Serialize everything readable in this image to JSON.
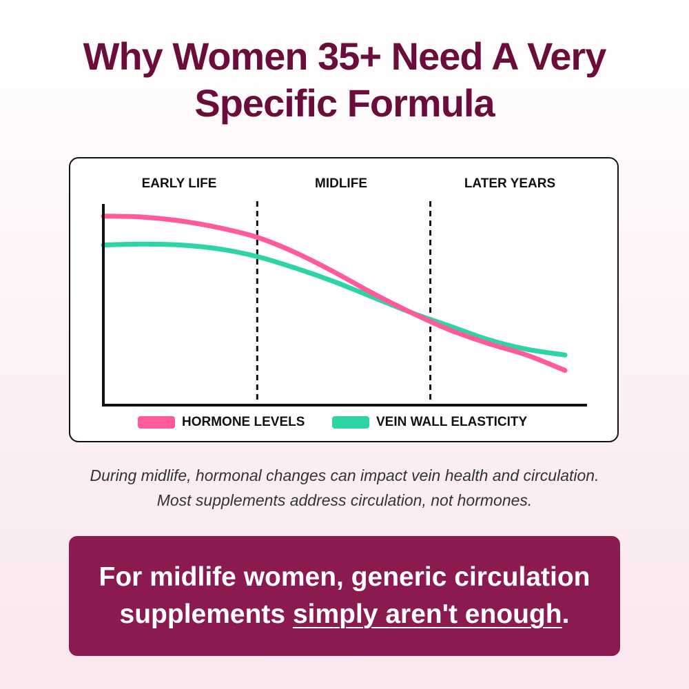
{
  "title_line1": "Why Women 35+ Need A Very",
  "title_line2": "Specific Formula",
  "chart_data": {
    "type": "line",
    "title": "",
    "xlabel": "",
    "ylabel": "",
    "x": [
      0,
      1,
      2,
      3,
      4,
      5,
      6,
      7,
      8,
      9,
      10,
      11,
      12
    ],
    "xlim": [
      0,
      12
    ],
    "ylim": [
      0,
      10
    ],
    "phases": [
      "EARLY LIFE",
      "MIDLIFE",
      "LATER YEARS"
    ],
    "phase_boundaries": [
      4,
      8.5
    ],
    "series": [
      {
        "name": "HORMONE LEVELS",
        "color": "#ff5a9a",
        "values": [
          9.8,
          9.75,
          9.55,
          9.2,
          8.7,
          7.9,
          6.9,
          5.8,
          4.8,
          3.9,
          3.2,
          2.6,
          1.8
        ]
      },
      {
        "name": "VEIN WALL ELASTICITY",
        "color": "#2dd4a4",
        "values": [
          8.3,
          8.35,
          8.3,
          8.1,
          7.7,
          7.1,
          6.4,
          5.6,
          4.8,
          4.1,
          3.4,
          2.9,
          2.6
        ]
      }
    ],
    "grid": false,
    "legend": "bottom"
  },
  "caption_line1": "During midlife, hormonal changes can impact vein health and circulation.",
  "caption_line2": "Most supplements address circulation, not hormones.",
  "banner_line1": "For midlife women, generic circulation",
  "banner_pre": "supplements ",
  "banner_emph": "simply aren't enough",
  "banner_post": "."
}
